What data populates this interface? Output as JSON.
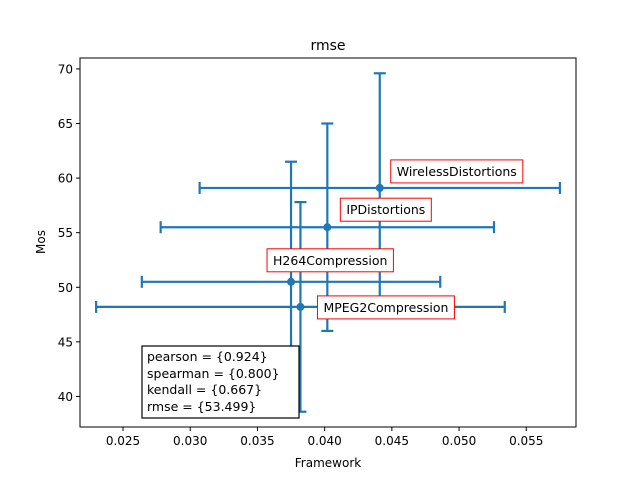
{
  "chart_data": {
    "type": "scatter",
    "title": "rmse",
    "xlabel": "Framework",
    "ylabel": "Mos",
    "xlim": [
      0.0218,
      0.0587
    ],
    "ylim": [
      37.2,
      71.0
    ],
    "xticks": [
      0.025,
      0.03,
      0.035,
      0.04,
      0.045,
      0.05,
      0.055
    ],
    "xtick_labels": [
      "0.025",
      "0.030",
      "0.035",
      "0.040",
      "0.045",
      "0.050",
      "0.055"
    ],
    "yticks": [
      40,
      45,
      50,
      55,
      60,
      65,
      70
    ],
    "ytick_labels": [
      "40",
      "45",
      "50",
      "55",
      "60",
      "65",
      "70"
    ],
    "grid": false,
    "series_color": "#1f77b4",
    "annotation_border_color": "#ff0000",
    "points": [
      {
        "label": "WirelessDistortions",
        "x": 0.0441,
        "y": 59.1,
        "xerr": 0.0134,
        "yerr": 10.5
      },
      {
        "label": "IPDistortions",
        "x": 0.0402,
        "y": 55.5,
        "xerr": 0.0124,
        "yerr": 9.5
      },
      {
        "label": "H264Compression",
        "x": 0.0375,
        "y": 50.5,
        "xerr": 0.0111,
        "yerr": 11.0
      },
      {
        "label": "MPEG2Compression",
        "x": 0.0382,
        "y": 48.2,
        "xerr": 0.0152,
        "yerr": 9.6
      }
    ],
    "stats_box": {
      "placement": "lower-left",
      "lines": [
        "pearson = {0.924}",
        "spearman = {0.800}",
        "kendall = {0.667}",
        "rmse = {53.499}"
      ]
    }
  }
}
